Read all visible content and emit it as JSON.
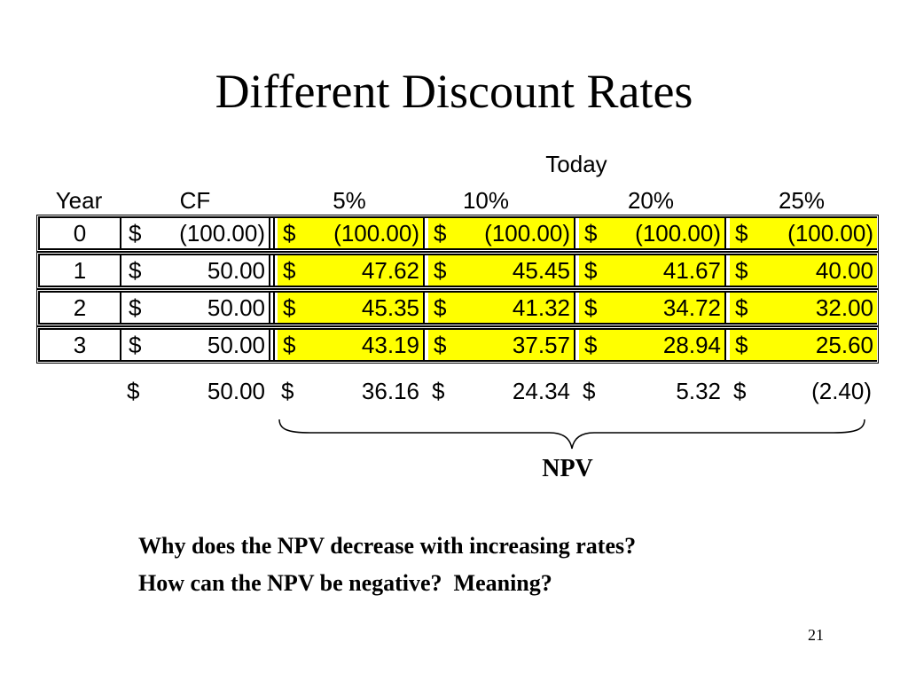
{
  "slide": {
    "title": "Different Discount Rates",
    "page_number": "21"
  },
  "table": {
    "group_header": "Today",
    "headers": {
      "year": "Year",
      "cf": "CF",
      "r5": "5%",
      "r10": "10%",
      "r20": "20%",
      "r25": "25%"
    },
    "rows": [
      {
        "year": "0",
        "cf": "(100.00)",
        "r5": "(100.00)",
        "r10": "(100.00)",
        "r20": "(100.00)",
        "r25": "(100.00)"
      },
      {
        "year": "1",
        "cf": "50.00",
        "r5": "47.62",
        "r10": "45.45",
        "r20": "41.67",
        "r25": "40.00"
      },
      {
        "year": "2",
        "cf": "50.00",
        "r5": "45.35",
        "r10": "41.32",
        "r20": "34.72",
        "r25": "32.00"
      },
      {
        "year": "3",
        "cf": "50.00",
        "r5": "43.19",
        "r10": "37.57",
        "r20": "28.94",
        "r25": "25.60"
      }
    ],
    "totals": {
      "cf": "50.00",
      "r5": "36.16",
      "r10": "24.34",
      "r20": "5.32",
      "r25": "(2.40)"
    },
    "currency_symbol": "$",
    "highlight_color": "#ffff00"
  },
  "npv_label": "NPV",
  "questions": [
    "Why does the NPV decrease with increasing rates?",
    "How can the NPV be negative?  Meaning?"
  ]
}
